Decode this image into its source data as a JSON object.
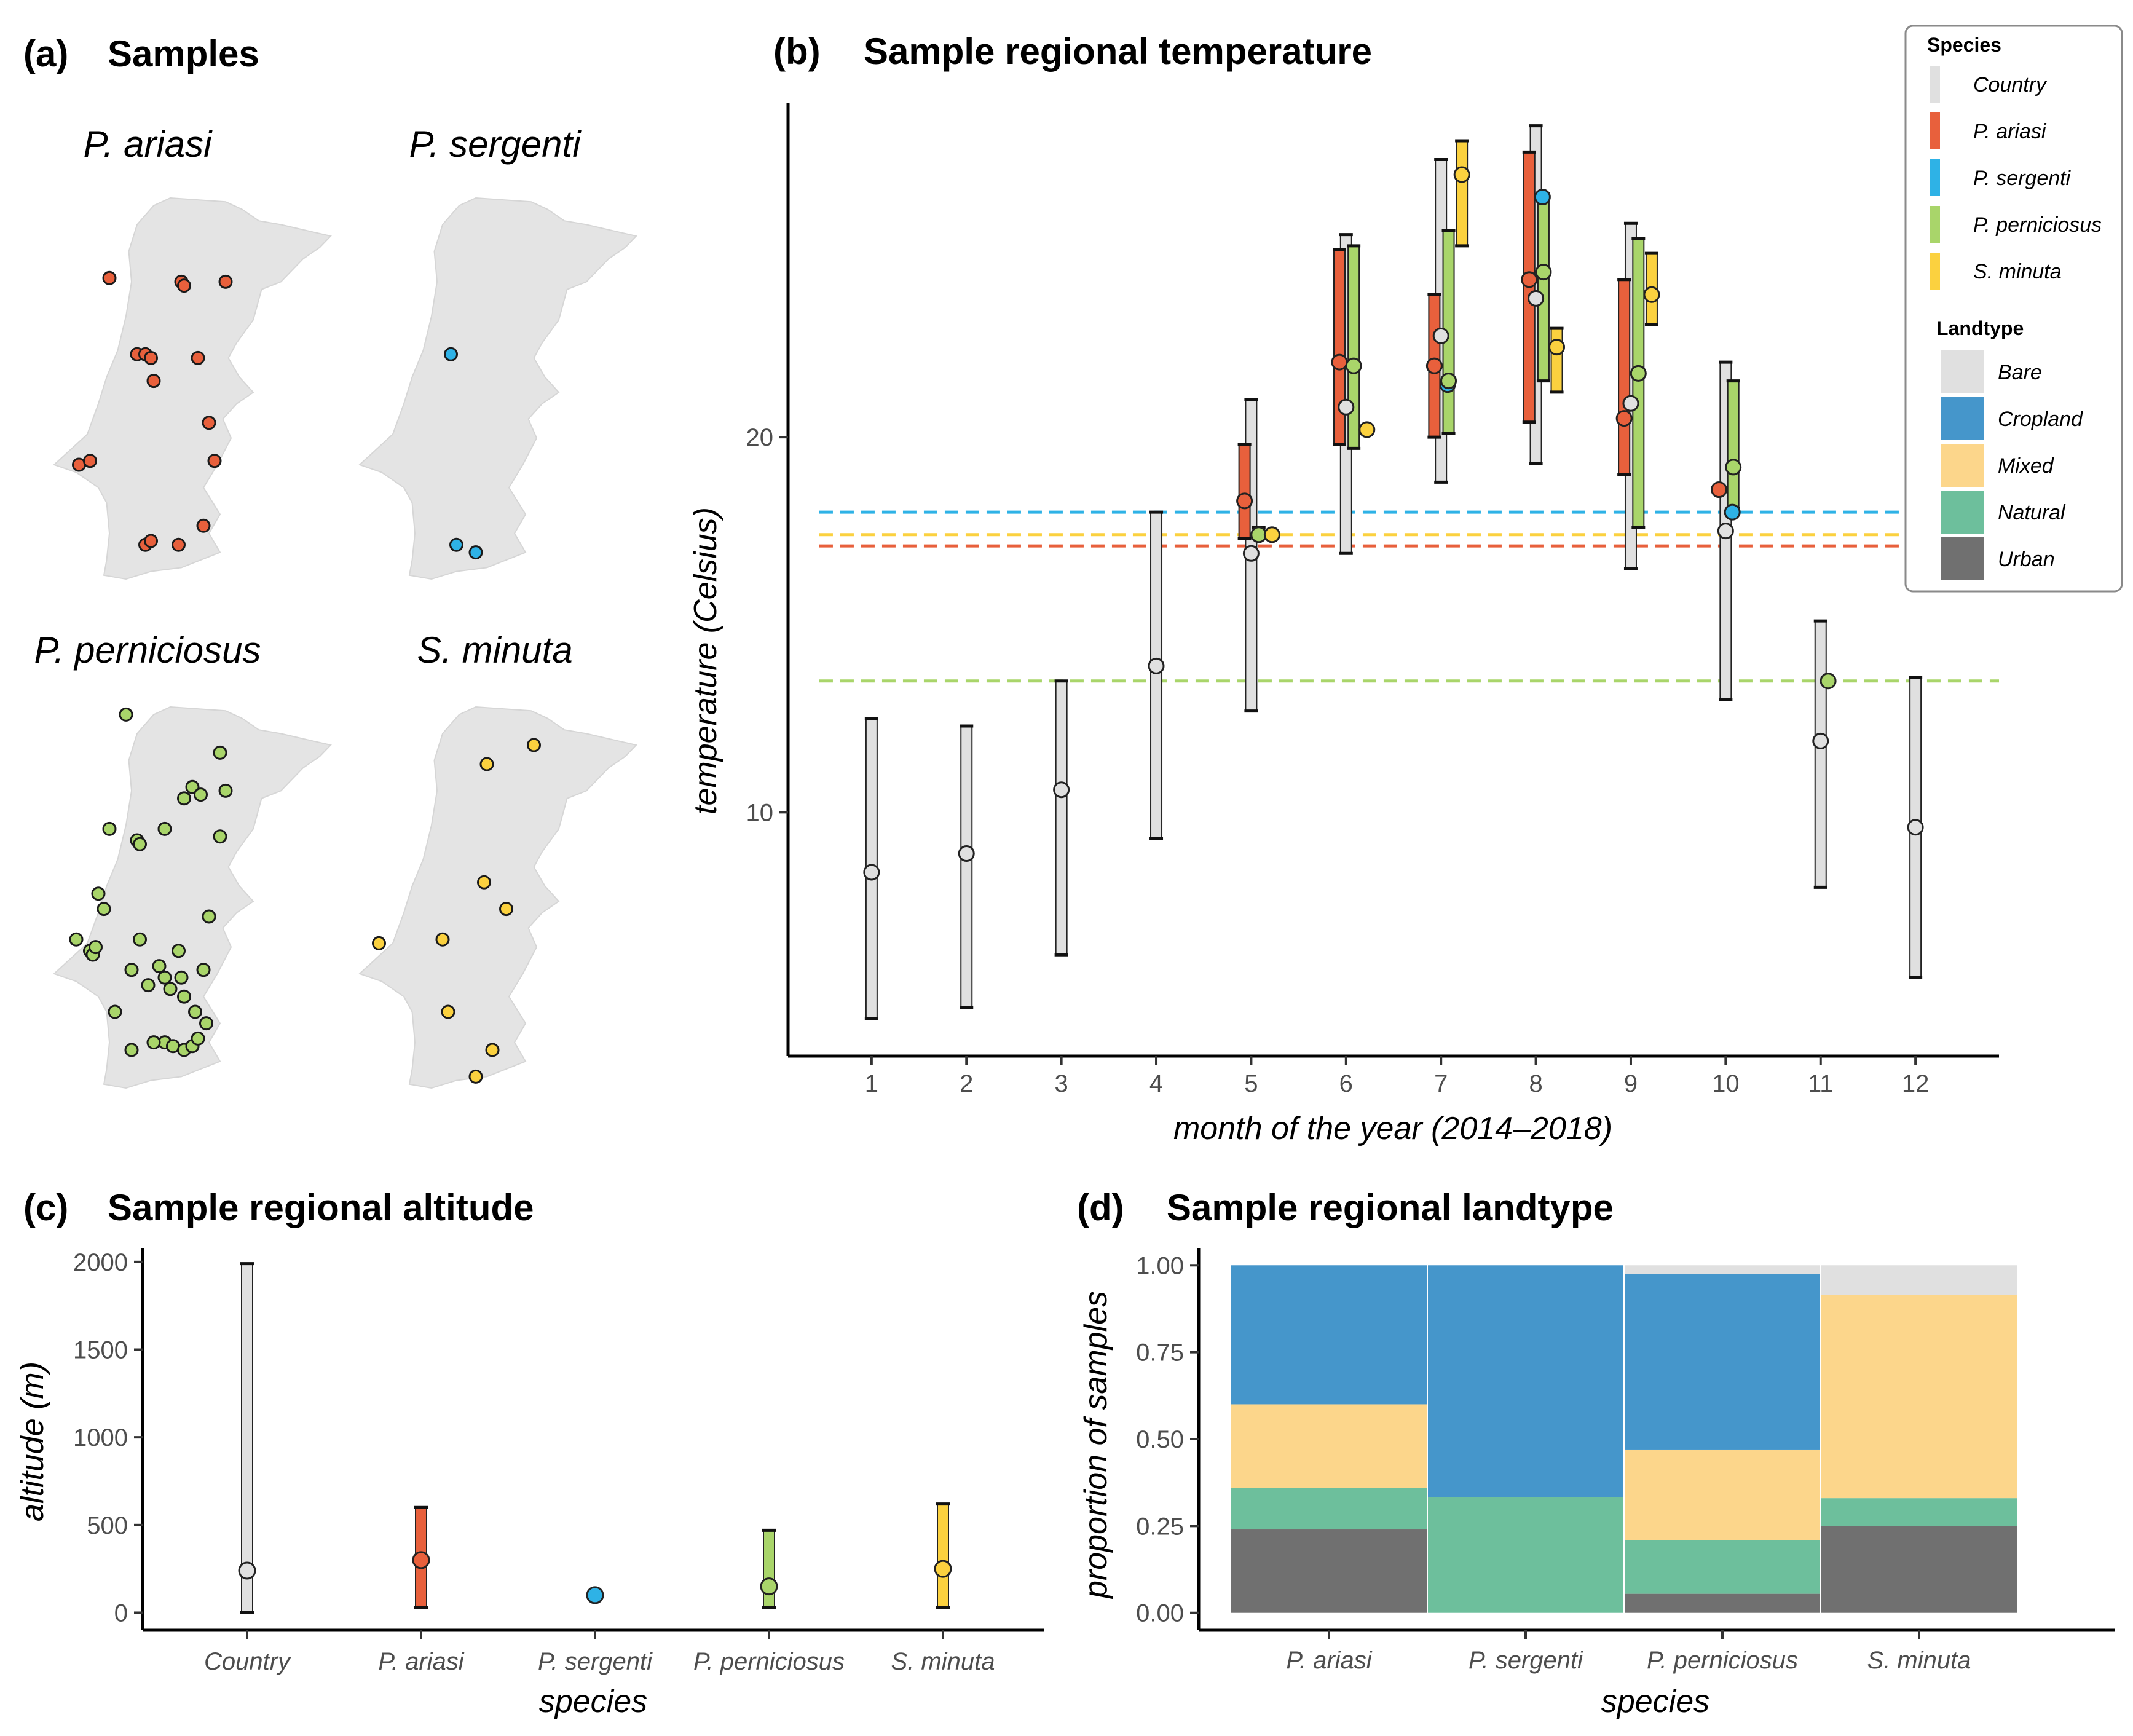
{
  "colors": {
    "Country": "#e0e0e0",
    "P. ariasi": "#e8603c",
    "P. sergenti": "#2eb2e6",
    "P. perniciosus": "#a9d56a",
    "S. minuta": "#fbd13f",
    "Bare": "#e0e0e0",
    "Cropland": "#4596cb",
    "Mixed": "#fcd68b",
    "Natural": "#6dbf9c",
    "Urban": "#707070"
  },
  "panel_a": {
    "label": "(a)",
    "title": "Samples",
    "maps": [
      {
        "species": "P. ariasi",
        "color": "#e8603c",
        "points": [
          [
            0.2,
            0.21
          ],
          [
            0.46,
            0.22
          ],
          [
            0.47,
            0.23
          ],
          [
            0.62,
            0.22
          ],
          [
            0.3,
            0.41
          ],
          [
            0.33,
            0.41
          ],
          [
            0.35,
            0.42
          ],
          [
            0.52,
            0.42
          ],
          [
            0.36,
            0.48
          ],
          [
            0.56,
            0.59
          ],
          [
            0.58,
            0.69
          ],
          [
            0.09,
            0.7
          ],
          [
            0.13,
            0.69
          ],
          [
            0.54,
            0.86
          ],
          [
            0.33,
            0.91
          ],
          [
            0.35,
            0.9
          ],
          [
            0.45,
            0.91
          ]
        ]
      },
      {
        "species": "P. sergenti",
        "color": "#2eb2e6",
        "points": [
          [
            0.33,
            0.41
          ],
          [
            0.35,
            0.91
          ],
          [
            0.42,
            0.93
          ]
        ]
      },
      {
        "species": "P. perniciosus",
        "color": "#a9d56a",
        "points": [
          [
            0.26,
            0.02
          ],
          [
            0.6,
            0.12
          ],
          [
            0.5,
            0.21
          ],
          [
            0.53,
            0.23
          ],
          [
            0.47,
            0.24
          ],
          [
            0.62,
            0.22
          ],
          [
            0.4,
            0.32
          ],
          [
            0.6,
            0.34
          ],
          [
            0.2,
            0.32
          ],
          [
            0.3,
            0.35
          ],
          [
            0.31,
            0.36
          ],
          [
            0.16,
            0.49
          ],
          [
            0.18,
            0.53
          ],
          [
            0.56,
            0.55
          ],
          [
            0.08,
            0.61
          ],
          [
            0.13,
            0.64
          ],
          [
            0.14,
            0.65
          ],
          [
            0.15,
            0.63
          ],
          [
            0.31,
            0.61
          ],
          [
            0.28,
            0.69
          ],
          [
            0.38,
            0.68
          ],
          [
            0.45,
            0.64
          ],
          [
            0.54,
            0.69
          ],
          [
            0.4,
            0.71
          ],
          [
            0.46,
            0.71
          ],
          [
            0.42,
            0.74
          ],
          [
            0.34,
            0.73
          ],
          [
            0.47,
            0.76
          ],
          [
            0.51,
            0.8
          ],
          [
            0.22,
            0.8
          ],
          [
            0.55,
            0.83
          ],
          [
            0.4,
            0.88
          ],
          [
            0.43,
            0.89
          ],
          [
            0.47,
            0.9
          ],
          [
            0.5,
            0.89
          ],
          [
            0.52,
            0.87
          ],
          [
            0.28,
            0.9
          ],
          [
            0.36,
            0.88
          ]
        ]
      },
      {
        "species": "S. minuta",
        "color": "#fbd13f",
        "points": [
          [
            0.63,
            0.1
          ],
          [
            0.46,
            0.15
          ],
          [
            0.45,
            0.46
          ],
          [
            0.53,
            0.53
          ],
          [
            0.07,
            0.62
          ],
          [
            0.3,
            0.61
          ],
          [
            0.32,
            0.8
          ],
          [
            0.48,
            0.9
          ],
          [
            0.42,
            0.97
          ]
        ]
      }
    ]
  },
  "chart_data": [
    {
      "type": "range-point",
      "panel_label": "(b)",
      "title": "Sample regional temperature",
      "xlabel": "month of the year (2014–2018)",
      "ylabel": "temperature (Celsius)",
      "x_ticks": [
        1,
        2,
        3,
        4,
        5,
        6,
        7,
        8,
        9,
        10,
        11,
        12
      ],
      "y_ticks": [
        10,
        20
      ],
      "ylim": [
        3.5,
        28.9
      ],
      "xlim": [
        0.12,
        12.88
      ],
      "series": [
        {
          "name": "Country",
          "offset": 0,
          "data": [
            {
              "x": 1,
              "low": 4.5,
              "high": 12.5,
              "point": 8.4
            },
            {
              "x": 2,
              "low": 4.8,
              "high": 12.3,
              "point": 8.9
            },
            {
              "x": 3,
              "low": 6.2,
              "high": 13.5,
              "point": 10.6
            },
            {
              "x": 4,
              "low": 9.3,
              "high": 18.0,
              "point": 13.9
            },
            {
              "x": 5,
              "low": 12.7,
              "high": 21.0,
              "point": 16.9
            },
            {
              "x": 6,
              "low": 16.9,
              "high": 25.4,
              "point": 20.8
            },
            {
              "x": 7,
              "low": 18.8,
              "high": 27.4,
              "point": 22.7
            },
            {
              "x": 8,
              "low": 19.3,
              "high": 28.3,
              "point": 23.7
            },
            {
              "x": 9,
              "low": 16.5,
              "high": 25.7,
              "point": 20.9
            },
            {
              "x": 10,
              "low": 13.0,
              "high": 22.0,
              "point": 17.5
            },
            {
              "x": 11,
              "low": 8.0,
              "high": 15.1,
              "point": 11.9
            },
            {
              "x": 12,
              "low": 5.6,
              "high": 13.6,
              "point": 9.6
            }
          ]
        },
        {
          "name": "P. ariasi",
          "offset": -0.07,
          "data": [
            {
              "x": 5,
              "low": 17.3,
              "high": 19.8,
              "point": 18.3
            },
            {
              "x": 6,
              "low": 19.8,
              "high": 25.0,
              "point": 22.0
            },
            {
              "x": 7,
              "low": 20.0,
              "high": 23.8,
              "point": 21.9
            },
            {
              "x": 8,
              "low": 20.4,
              "high": 27.6,
              "point": 24.2
            },
            {
              "x": 9,
              "low": 19.0,
              "high": 24.2,
              "point": 20.5
            },
            {
              "x": 10,
              "low": null,
              "high": null,
              "point": 18.6
            }
          ]
        },
        {
          "name": "P. sergenti",
          "offset": 0.07,
          "data": [
            {
              "x": 7,
              "low": null,
              "high": null,
              "point": 21.4
            },
            {
              "x": 8,
              "low": null,
              "high": null,
              "point": 26.4
            },
            {
              "x": 10,
              "low": null,
              "high": null,
              "point": 18.0
            }
          ]
        },
        {
          "name": "P. perniciosus",
          "offset": 0.08,
          "data": [
            {
              "x": 5,
              "low": 17.3,
              "high": 17.6,
              "point": 17.4
            },
            {
              "x": 6,
              "low": 19.7,
              "high": 25.1,
              "point": 21.9
            },
            {
              "x": 7,
              "low": 20.1,
              "high": 25.5,
              "point": 21.5
            },
            {
              "x": 8,
              "low": 21.5,
              "high": 26.5,
              "point": 24.4
            },
            {
              "x": 9,
              "low": 17.6,
              "high": 25.3,
              "point": 21.7
            },
            {
              "x": 10,
              "low": 18.1,
              "high": 21.5,
              "point": 19.2
            },
            {
              "x": 11,
              "low": null,
              "high": null,
              "point": 13.5
            }
          ]
        },
        {
          "name": "S. minuta",
          "offset": 0.22,
          "data": [
            {
              "x": 5,
              "low": null,
              "high": null,
              "point": 17.4
            },
            {
              "x": 6,
              "low": null,
              "high": null,
              "point": 20.2
            },
            {
              "x": 7,
              "low": 25.1,
              "high": 27.9,
              "point": 27.0
            },
            {
              "x": 8,
              "low": 21.2,
              "high": 22.9,
              "point": 22.4
            },
            {
              "x": 9,
              "low": 23.0,
              "high": 24.9,
              "point": 23.8
            }
          ]
        }
      ],
      "reference_lines": [
        {
          "series": "P. sergenti",
          "y": 18.0
        },
        {
          "series": "S. minuta",
          "y": 17.4
        },
        {
          "series": "P. ariasi",
          "y": 17.1
        },
        {
          "series": "P. perniciosus",
          "y": 13.5
        }
      ],
      "legend": {
        "position": "top-right",
        "species_title": "Species",
        "species": [
          "Country",
          "P. ariasi",
          "P. sergenti",
          "P. perniciosus",
          "S. minuta"
        ],
        "landtype_title": "Landtype",
        "landtypes": [
          "Bare",
          "Cropland",
          "Mixed",
          "Natural",
          "Urban"
        ]
      }
    },
    {
      "type": "range-point",
      "panel_label": "(c)",
      "title": "Sample regional altitude",
      "xlabel": "species",
      "ylabel": "altitude (m)",
      "categories": [
        "Country",
        "P. ariasi",
        "P. sergenti",
        "P. perniciosus",
        "S. minuta"
      ],
      "y_ticks": [
        0,
        500,
        1000,
        1500,
        2000
      ],
      "ylim": [
        -100,
        2080
      ],
      "data": [
        {
          "low": 0,
          "high": 1990,
          "point": 240
        },
        {
          "low": 30,
          "high": 600,
          "point": 300
        },
        {
          "low": null,
          "high": null,
          "point": 100
        },
        {
          "low": 30,
          "high": 470,
          "point": 150
        },
        {
          "low": 30,
          "high": 620,
          "point": 250
        }
      ]
    },
    {
      "type": "bar",
      "stacked": true,
      "panel_label": "(d)",
      "title": "Sample regional landtype",
      "xlabel": "species",
      "ylabel": "proportion of samples",
      "categories": [
        "P. ariasi",
        "P. sergenti",
        "P. perniciosus",
        "S. minuta"
      ],
      "y_ticks": [
        "0.00",
        "0.25",
        "0.50",
        "0.75",
        "1.00"
      ],
      "ylim": [
        -0.05,
        1.05
      ],
      "series": [
        {
          "name": "Urban",
          "values": [
            0.24,
            0.0,
            0.055,
            0.25
          ]
        },
        {
          "name": "Natural",
          "values": [
            0.12,
            0.333,
            0.155,
            0.08
          ]
        },
        {
          "name": "Mixed",
          "values": [
            0.24,
            0.0,
            0.26,
            0.585
          ]
        },
        {
          "name": "Cropland",
          "values": [
            0.4,
            0.667,
            0.505,
            0.0
          ]
        },
        {
          "name": "Bare",
          "values": [
            0.0,
            0.0,
            0.025,
            0.085
          ]
        }
      ]
    }
  ]
}
